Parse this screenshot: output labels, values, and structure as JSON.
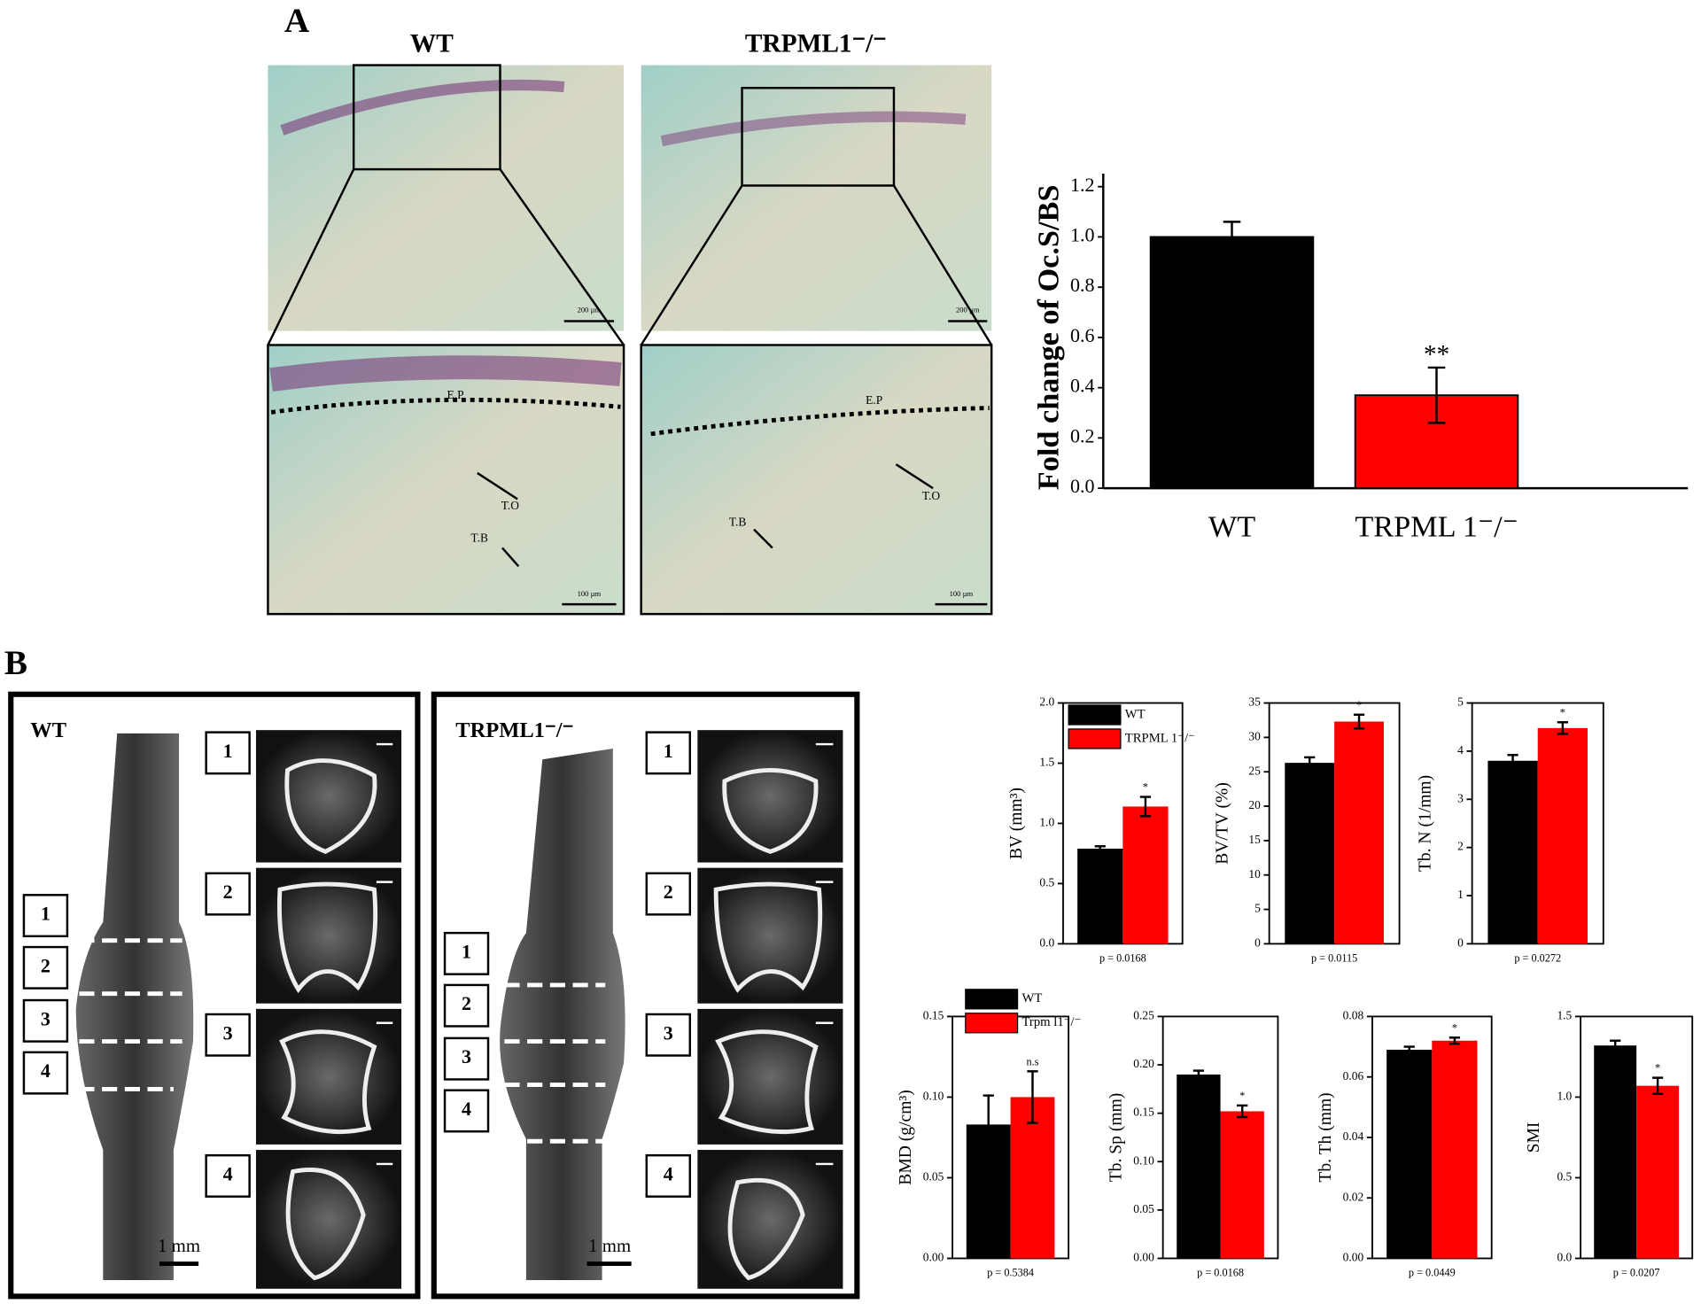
{
  "panel_a": {
    "label": "A",
    "wt": "WT",
    "ko": "TRPML1⁻/⁻",
    "scale_low": "200 µm",
    "scale_high": "100 µm",
    "ep": "E.P",
    "to": "T.O",
    "tb": "T.B"
  },
  "panel_b": {
    "label": "B",
    "wt": "WT",
    "ko": "TRPML1⁻/⁻",
    "scale": "1 mm",
    "sections": [
      "1",
      "2",
      "3",
      "4"
    ]
  },
  "chart_data": [
    {
      "type": "bar",
      "ylabel": "Fold change of Oc.S/BS",
      "categories": [
        "WT",
        "TRPML 1⁻/⁻"
      ],
      "values": [
        1.0,
        0.37
      ],
      "errors": [
        0.06,
        0.11
      ],
      "annotations": [
        null,
        "**"
      ],
      "colors": [
        "#000000",
        "#ff0000"
      ],
      "ylim": [
        0,
        1.2
      ],
      "yticks": [
        {
          "value": 0,
          "label": "0.0"
        },
        0.2,
        0.4,
        0.6,
        0.8,
        {
          "value": 1,
          "label": "1.0"
        },
        1.2
      ]
    },
    {
      "type": "bar",
      "ylabel": "BV (mm³)",
      "note": "p = 0.0168",
      "categories": [
        null
      ],
      "series": [
        {
          "name": "WT",
          "color": "#000000",
          "values": [
            0.79
          ],
          "errors": [
            0.02
          ]
        },
        {
          "name": "TRPML 1⁻/⁻",
          "color": "#ff0000",
          "values": [
            1.14
          ],
          "errors": [
            0.08
          ],
          "annotations": [
            "*"
          ]
        }
      ],
      "ylim": [
        0,
        2
      ],
      "yticks": [
        {
          "value": 0,
          "label": "0.0"
        },
        0.5,
        {
          "value": 1,
          "label": "1.0"
        },
        1.5,
        {
          "value": 2,
          "label": "2.0"
        }
      ]
    },
    {
      "type": "bar",
      "ylabel": "BV/TV (%)",
      "note": "p = 0.0115",
      "categories": [
        null
      ],
      "series": [
        {
          "color": "#000000",
          "values": [
            26.3
          ],
          "errors": [
            0.8
          ]
        },
        {
          "color": "#ff0000",
          "values": [
            32.3
          ],
          "errors": [
            1.0
          ],
          "annotations": [
            "*"
          ]
        }
      ],
      "ylim": [
        0,
        35
      ],
      "yticks": [
        0,
        5,
        10,
        15,
        20,
        25,
        30,
        35
      ]
    },
    {
      "type": "bar",
      "ylabel": "Tb. N (1/mm)",
      "note": "p = 0.0272",
      "categories": [
        null
      ],
      "series": [
        {
          "color": "#000000",
          "values": [
            3.8
          ],
          "errors": [
            0.12
          ]
        },
        {
          "color": "#ff0000",
          "values": [
            4.48
          ],
          "errors": [
            0.12
          ],
          "annotations": [
            "*"
          ]
        }
      ],
      "ylim": [
        0,
        5
      ],
      "yticks": [
        0,
        1,
        2,
        3,
        4,
        5
      ]
    },
    {
      "type": "bar",
      "ylabel": "BMD (g/cm³)",
      "note": "p = 0.5384",
      "categories": [
        null
      ],
      "series": [
        {
          "name": "WT",
          "color": "#000000",
          "values": [
            0.083
          ],
          "errors": [
            0.018
          ]
        },
        {
          "name": "Trpm l1⁻/⁻",
          "color": "#ff0000",
          "values": [
            0.1
          ],
          "errors": [
            0.016
          ],
          "annotations": [
            "n.s"
          ]
        }
      ],
      "ylim": [
        0,
        0.15
      ],
      "yticks": [
        {
          "value": 0,
          "label": "0.00"
        },
        0.05,
        {
          "value": 0.1,
          "label": "0.10"
        },
        0.15
      ]
    },
    {
      "type": "bar",
      "ylabel": "Tb. Sp (mm)",
      "note": "p = 0.0168",
      "categories": [
        null
      ],
      "series": [
        {
          "color": "#000000",
          "values": [
            0.19
          ],
          "errors": [
            0.004
          ]
        },
        {
          "color": "#ff0000",
          "values": [
            0.152
          ],
          "errors": [
            0.006
          ],
          "annotations": [
            "*"
          ]
        }
      ],
      "ylim": [
        0,
        0.25
      ],
      "yticks": [
        {
          "value": 0,
          "label": "0.00"
        },
        0.05,
        {
          "value": 0.1,
          "label": "0.10"
        },
        0.15,
        {
          "value": 0.2,
          "label": "0.20"
        },
        0.25
      ]
    },
    {
      "type": "bar",
      "ylabel": "Tb. Th (mm)",
      "note": "p = 0.0449",
      "categories": [
        null
      ],
      "series": [
        {
          "color": "#000000",
          "values": [
            0.069
          ],
          "errors": [
            0.001
          ]
        },
        {
          "color": "#ff0000",
          "values": [
            0.072
          ],
          "errors": [
            0.001
          ],
          "annotations": [
            "*"
          ]
        }
      ],
      "ylim": [
        0,
        0.08
      ],
      "yticks": [
        {
          "value": 0,
          "label": "0.00"
        },
        0.02,
        0.04,
        0.06,
        0.08
      ]
    },
    {
      "type": "bar",
      "ylabel": "SMI",
      "note": "p = 0.0207",
      "categories": [
        null
      ],
      "series": [
        {
          "color": "#000000",
          "values": [
            1.32
          ],
          "errors": [
            0.03
          ]
        },
        {
          "color": "#ff0000",
          "values": [
            1.07
          ],
          "errors": [
            0.05
          ],
          "annotations": [
            "*"
          ]
        }
      ],
      "ylim": [
        0,
        1.5
      ],
      "yticks": [
        {
          "value": 0,
          "label": "0.0"
        },
        0.5,
        {
          "value": 1,
          "label": "1.0"
        },
        1.5
      ]
    }
  ]
}
